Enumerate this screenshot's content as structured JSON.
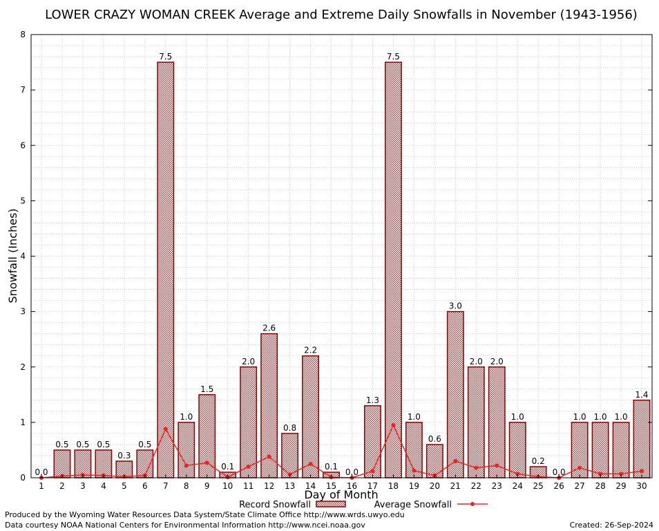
{
  "chart_data": {
    "type": "bar",
    "title": "LOWER CRAZY WOMAN CREEK Average and Extreme Daily Snowfalls in November (1943-1956)",
    "xlabel": "Day of Month",
    "ylabel": "Snowfall (Inches)",
    "ylim": [
      0,
      8
    ],
    "yticks": [
      0,
      1,
      2,
      3,
      4,
      5,
      6,
      7,
      8
    ],
    "grid": true,
    "categories": [
      "1",
      "2",
      "3",
      "4",
      "5",
      "6",
      "7",
      "8",
      "9",
      "10",
      "11",
      "12",
      "13",
      "14",
      "15",
      "16",
      "17",
      "18",
      "19",
      "20",
      "21",
      "22",
      "23",
      "24",
      "25",
      "26",
      "27",
      "28",
      "29",
      "30"
    ],
    "series": [
      {
        "name": "Record Snowfall",
        "type": "bar",
        "values": [
          0.0,
          0.5,
          0.5,
          0.5,
          0.3,
          0.5,
          7.5,
          1.0,
          1.5,
          0.1,
          2.0,
          2.6,
          0.8,
          2.2,
          0.1,
          0.0,
          1.3,
          7.5,
          1.0,
          0.6,
          3.0,
          2.0,
          2.0,
          1.0,
          0.2,
          0.0,
          1.0,
          1.0,
          1.0,
          1.4
        ],
        "labels": [
          "0.0",
          "0.5",
          "0.5",
          "0.5",
          "0.3",
          "0.5",
          "7.5",
          "1.0",
          "1.5",
          "0.1",
          "2.0",
          "2.6",
          "0.8",
          "2.2",
          "0.1",
          "0.0",
          "1.3",
          "7.5",
          "1.0",
          "0.6",
          "3.0",
          "2.0",
          "2.0",
          "1.0",
          "0.2",
          "0.0",
          "1.0",
          "1.0",
          "1.0",
          "1.4"
        ]
      },
      {
        "name": "Average Snowfall",
        "type": "line",
        "values": [
          0.0,
          0.03,
          0.05,
          0.04,
          0.02,
          0.04,
          0.88,
          0.22,
          0.27,
          0.01,
          0.2,
          0.38,
          0.06,
          0.25,
          0.01,
          0.0,
          0.12,
          0.95,
          0.13,
          0.04,
          0.3,
          0.18,
          0.22,
          0.07,
          0.02,
          0.0,
          0.18,
          0.07,
          0.07,
          0.12
        ]
      }
    ],
    "legend": {
      "position": "bottom"
    },
    "colors": {
      "bar_stroke": "#8b0000",
      "bar_pattern": "#a05050",
      "line": "#ee2222"
    }
  },
  "footer": {
    "left_line1": "Produced by the Wyoming Water Resources Data System/State Climate Office http://www.wrds.uwyo.edu",
    "left_line2": "Data courtesy NOAA National Centers for Environmental Information http://www.ncei.noaa.gov",
    "created": "Created:  26-Sep-2024"
  }
}
